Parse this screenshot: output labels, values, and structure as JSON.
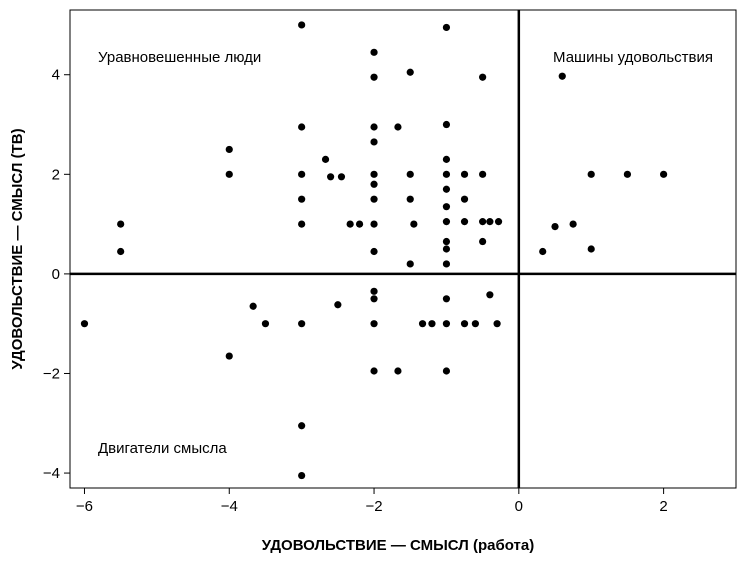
{
  "chart_data": {
    "type": "scatter",
    "xlabel": "УДОВОЛЬСТВИЕ — СМЫСЛ (работа)",
    "ylabel": "УДОВОЛЬСТВИЕ — СМЫСЛ (ТВ)",
    "xlim": [
      -6.2,
      3.0
    ],
    "ylim": [
      -4.3,
      5.3
    ],
    "xticks": [
      -6,
      -4,
      -2,
      0,
      2
    ],
    "yticks": [
      -4,
      -2,
      0,
      2,
      4
    ],
    "xtick_labels": [
      "−6",
      "−4",
      "−2",
      "0",
      "2"
    ],
    "ytick_labels": [
      "−4",
      "−2",
      "0",
      "2",
      "4"
    ],
    "grid": false,
    "reference_lines": {
      "x": 0,
      "y": 0
    },
    "annotations": [
      {
        "text": "Уравновешенные люди",
        "quadrant": "top-left"
      },
      {
        "text": "Машины удовольствия",
        "quadrant": "top-right"
      },
      {
        "text": "Двигатели смысла",
        "quadrant": "bottom-left"
      }
    ],
    "point_color": "#000000",
    "points": [
      {
        "x": -6.0,
        "y": -1.0
      },
      {
        "x": -5.5,
        "y": 1.0
      },
      {
        "x": -5.5,
        "y": 0.45
      },
      {
        "x": -4.0,
        "y": 2.5
      },
      {
        "x": -4.0,
        "y": 2.0
      },
      {
        "x": -4.0,
        "y": -1.65
      },
      {
        "x": -3.67,
        "y": -0.65
      },
      {
        "x": -3.5,
        "y": -1.0
      },
      {
        "x": -3.0,
        "y": 5.0
      },
      {
        "x": -3.0,
        "y": 2.95
      },
      {
        "x": -3.0,
        "y": 2.0
      },
      {
        "x": -3.0,
        "y": 1.5
      },
      {
        "x": -3.0,
        "y": 1.0
      },
      {
        "x": -3.0,
        "y": -1.0
      },
      {
        "x": -3.0,
        "y": -3.05
      },
      {
        "x": -3.0,
        "y": -4.05
      },
      {
        "x": -2.67,
        "y": 2.3
      },
      {
        "x": -2.6,
        "y": 1.95
      },
      {
        "x": -2.45,
        "y": 1.95
      },
      {
        "x": -2.5,
        "y": -0.62
      },
      {
        "x": -2.33,
        "y": 1.0
      },
      {
        "x": -2.2,
        "y": 1.0
      },
      {
        "x": -2.0,
        "y": 4.45
      },
      {
        "x": -2.0,
        "y": 3.95
      },
      {
        "x": -2.0,
        "y": 2.95
      },
      {
        "x": -2.0,
        "y": 2.65
      },
      {
        "x": -2.0,
        "y": 2.0
      },
      {
        "x": -2.0,
        "y": 1.8
      },
      {
        "x": -2.0,
        "y": 1.5
      },
      {
        "x": -2.0,
        "y": 1.0
      },
      {
        "x": -2.0,
        "y": 0.45
      },
      {
        "x": -2.0,
        "y": -0.35
      },
      {
        "x": -2.0,
        "y": -0.5
      },
      {
        "x": -2.0,
        "y": -1.0
      },
      {
        "x": -2.0,
        "y": -1.95
      },
      {
        "x": -1.67,
        "y": 2.95
      },
      {
        "x": -1.67,
        "y": -1.95
      },
      {
        "x": -1.5,
        "y": 4.05
      },
      {
        "x": -1.5,
        "y": 2.0
      },
      {
        "x": -1.5,
        "y": 1.5
      },
      {
        "x": -1.45,
        "y": 1.0
      },
      {
        "x": -1.5,
        "y": 0.2
      },
      {
        "x": -1.33,
        "y": -1.0
      },
      {
        "x": -1.2,
        "y": -1.0
      },
      {
        "x": -1.0,
        "y": 4.95
      },
      {
        "x": -1.0,
        "y": 3.0
      },
      {
        "x": -1.0,
        "y": 2.3
      },
      {
        "x": -1.0,
        "y": 2.0
      },
      {
        "x": -1.0,
        "y": 1.7
      },
      {
        "x": -1.0,
        "y": 1.35
      },
      {
        "x": -1.0,
        "y": 1.05
      },
      {
        "x": -1.0,
        "y": 0.65
      },
      {
        "x": -1.0,
        "y": 0.5
      },
      {
        "x": -1.0,
        "y": 0.2
      },
      {
        "x": -1.0,
        "y": -0.5
      },
      {
        "x": -1.0,
        "y": -1.0
      },
      {
        "x": -1.0,
        "y": -1.95
      },
      {
        "x": -0.75,
        "y": 2.0
      },
      {
        "x": -0.75,
        "y": 1.5
      },
      {
        "x": -0.75,
        "y": 1.05
      },
      {
        "x": -0.75,
        "y": -1.0
      },
      {
        "x": -0.6,
        "y": -1.0
      },
      {
        "x": -0.5,
        "y": 3.95
      },
      {
        "x": -0.5,
        "y": 2.0
      },
      {
        "x": -0.5,
        "y": 1.05
      },
      {
        "x": -0.5,
        "y": 0.65
      },
      {
        "x": -0.4,
        "y": 1.05
      },
      {
        "x": -0.28,
        "y": 1.05
      },
      {
        "x": -0.4,
        "y": -0.42
      },
      {
        "x": -0.3,
        "y": -1.0
      },
      {
        "x": 0.33,
        "y": 0.45
      },
      {
        "x": 0.5,
        "y": 0.95
      },
      {
        "x": 0.6,
        "y": 3.97
      },
      {
        "x": 0.75,
        "y": 1.0
      },
      {
        "x": 1.0,
        "y": 2.0
      },
      {
        "x": 1.0,
        "y": 0.5
      },
      {
        "x": 1.5,
        "y": 2.0
      },
      {
        "x": 2.0,
        "y": 2.0
      }
    ]
  }
}
